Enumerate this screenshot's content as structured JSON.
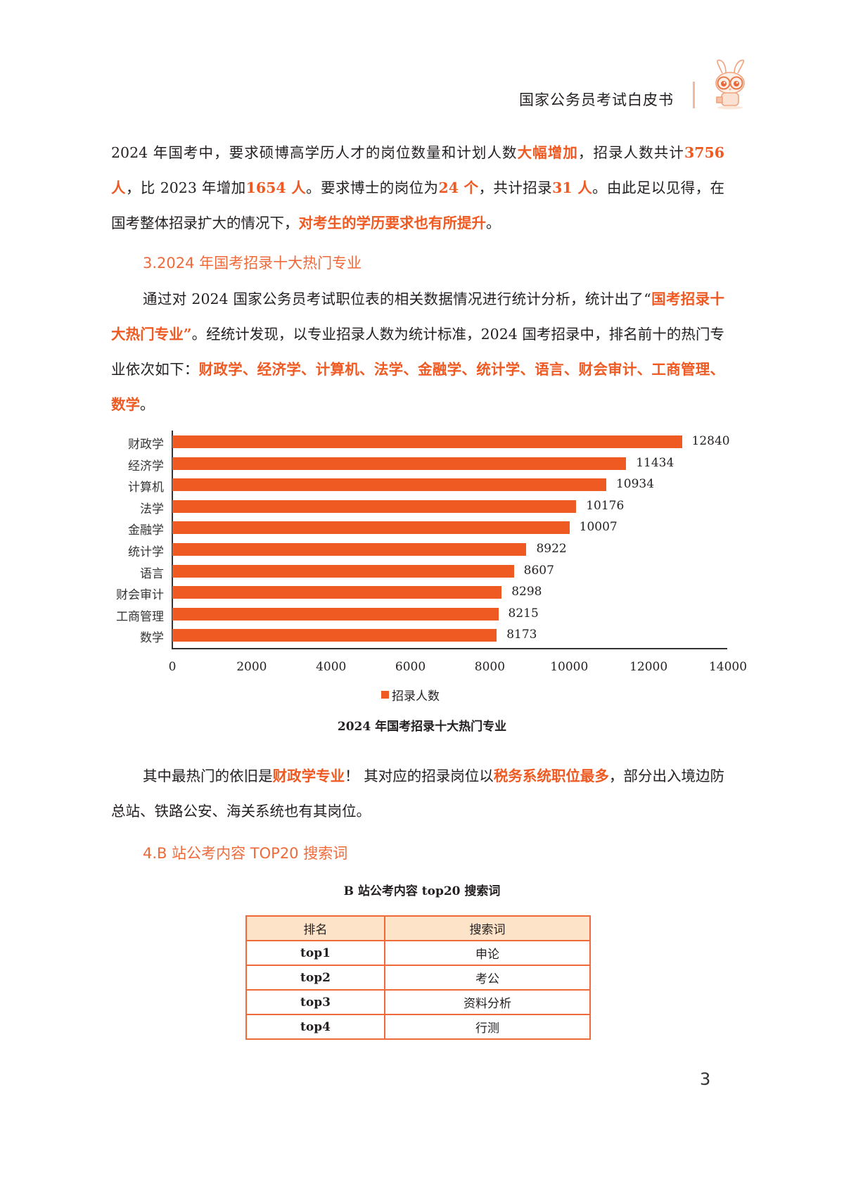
{
  "header": {
    "title": "国家公务员考试白皮书",
    "mascot_icon": "rabbit-mascot-with-glasses"
  },
  "intro_paragraph": {
    "segments": [
      {
        "text": "2024 年国考中，要求硕博高学历人才的岗位数量和计划人数",
        "hl": false
      },
      {
        "text": "大幅增加",
        "hl": true
      },
      {
        "text": "，招录人数共计",
        "hl": false
      },
      {
        "text": "3756 人",
        "hl": true
      },
      {
        "text": "，比 2023 年增加",
        "hl": false
      },
      {
        "text": "1654 人",
        "hl": true
      },
      {
        "text": "。要求博士的岗位为",
        "hl": false
      },
      {
        "text": "24 个",
        "hl": true
      },
      {
        "text": "，共计招录",
        "hl": false
      },
      {
        "text": "31 人",
        "hl": true
      },
      {
        "text": "。由此足以见得，在国考整体招录扩大的情况下，",
        "hl": false
      },
      {
        "text": "对考生的学历要求也有所提升",
        "hl": true
      },
      {
        "text": "。",
        "hl": false
      }
    ]
  },
  "section3": {
    "heading": "3.2024 年国考招录十大热门专业",
    "paragraph_segments": [
      {
        "text": "通过对 2024 国家公务员考试职位表的相关数据情况进行统计分析，统计出了“",
        "hl": false
      },
      {
        "text": "国考招录十大热门专业”",
        "hl": true
      },
      {
        "text": "。经统计发现，以专业招录人数为统计标准，2024 国考招录中，排名前十的热门专业依次如下：",
        "hl": false
      },
      {
        "text": "财政学、经济学、计算机、法学、金融学、统计学、语言、财会审计、工商管理、数学",
        "hl": true
      },
      {
        "text": "。",
        "hl": false
      }
    ]
  },
  "chart_data": {
    "type": "bar",
    "orientation": "horizontal",
    "title": "2024 年国考招录十大热门专业",
    "categories": [
      "财政学",
      "经济学",
      "计算机",
      "法学",
      "金融学",
      "统计学",
      "语言",
      "财会审计",
      "工商管理",
      "数学"
    ],
    "series": [
      {
        "name": "招录人数",
        "color": "#ef5a23",
        "values": [
          12840,
          11434,
          10934,
          10176,
          10007,
          8922,
          8607,
          8298,
          8215,
          8173
        ]
      }
    ],
    "x_ticks": [
      "0",
      "2000",
      "4000",
      "6000",
      "8000",
      "10000",
      "12000",
      "14000"
    ],
    "xlim": [
      0,
      14000
    ],
    "xlabel": "",
    "ylabel": "",
    "grid": false,
    "legend_position": "bottom",
    "data_labels": true
  },
  "after_chart_paragraph": {
    "segments": [
      {
        "text": "其中最热门的依旧是",
        "hl": false
      },
      {
        "text": "财政学专业",
        "hl": true
      },
      {
        "text": "！ 其对应的招录岗位以",
        "hl": false
      },
      {
        "text": "税务系统职位最多",
        "hl": true
      },
      {
        "text": "，部分出入境边防总站、铁路公安、海关系统也有其岗位。",
        "hl": false
      }
    ]
  },
  "section4": {
    "heading": "4.B 站公考内容 TOP20 搜索词",
    "table_caption": "B 站公考内容 top20 搜索词",
    "table": {
      "headers": [
        "排名",
        "搜索词"
      ],
      "rows": [
        [
          "top1",
          "申论"
        ],
        [
          "top2",
          "考公"
        ],
        [
          "top3",
          "资料分析"
        ],
        [
          "top4",
          "行测"
        ]
      ],
      "border_color": "#ef6a3a",
      "header_bg": "#fde3c8"
    }
  },
  "page_number": "3",
  "colors": {
    "accent": "#ef5a23",
    "heading": "#ef6a3a",
    "text": "#231f20"
  }
}
